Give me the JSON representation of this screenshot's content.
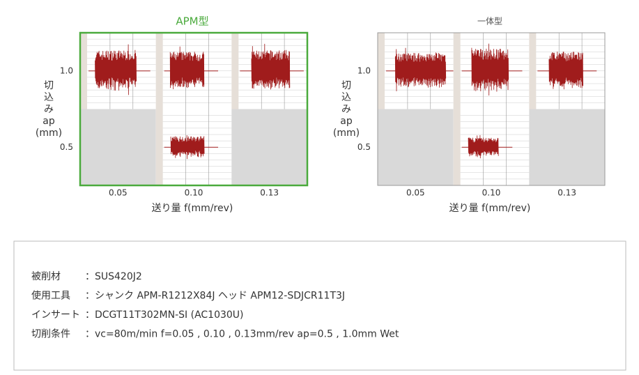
{
  "panels": [
    {
      "title": "APM型",
      "y_label": [
        "切",
        "込",
        "み",
        "ap",
        "(mm)"
      ],
      "rows": [
        "1.0",
        "0.5"
      ],
      "columns": [
        "0.05",
        "0.10",
        "0.13"
      ],
      "x_label": "送り量 f(mm/rev)"
    },
    {
      "title": "一体型",
      "y_label": [
        "切",
        "込",
        "み",
        "ap",
        "(mm)"
      ],
      "rows": [
        "1.0",
        "0.5"
      ],
      "columns": [
        "0.05",
        "0.10",
        "0.13"
      ],
      "x_label": "送り量 f(mm/rev)"
    }
  ],
  "conditions": [
    {
      "label": "被削材",
      "value": "：SUS420J2"
    },
    {
      "label": "使用工具",
      "value": "：シャンク APM-R1212X84J ヘッド APM12-SDJCR11T3J"
    },
    {
      "label": "インサート",
      "value": "：DCGT11T302MN-SI (AC1030U)"
    },
    {
      "label": "切削条件",
      "value": "：vc=80m/min f=0.05 , 0.10 , 0.13mm/rev ap=0.5 , 1.0mm Wet"
    }
  ]
}
